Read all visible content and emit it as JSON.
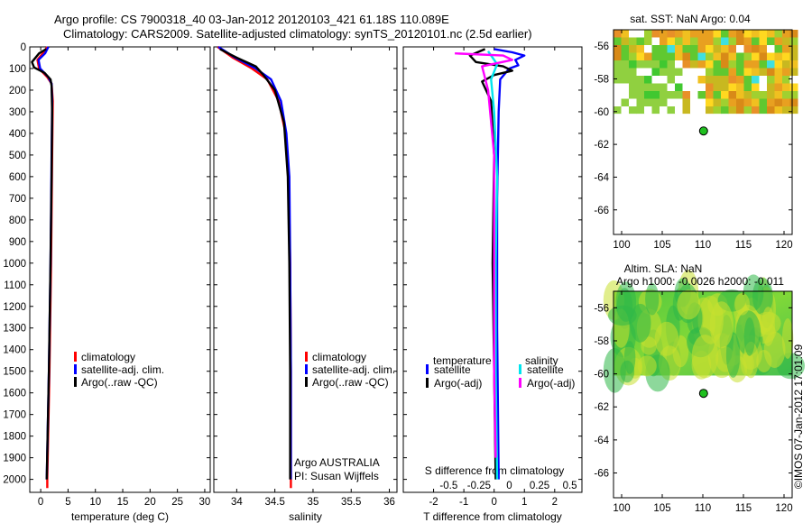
{
  "header": {
    "line1": "Argo profile: CS 7900318_40 03-Jan-2012 20120103_421 61.18S 110.089E",
    "line2": "Climatology: CARS2009. Satellite-adjusted climatology: synTS_20120101.nc (2.5d earlier)"
  },
  "depth_ticks": [
    "0",
    "100",
    "200",
    "300",
    "400",
    "500",
    "600",
    "700",
    "800",
    "900",
    "1000",
    "1100",
    "1200",
    "1300",
    "1400",
    "1500",
    "1600",
    "1700",
    "1800",
    "1900",
    "2000"
  ],
  "colors": {
    "climatology": "#ff0000",
    "satellite": "#0000ff",
    "argo": "#000000",
    "sal_satellite": "#00e5ee",
    "sal_argo": "#ff00ff"
  },
  "chart_data": [
    {
      "type": "line",
      "id": "temperature",
      "xlabel": "temperature (deg C)",
      "xlim": [
        -2,
        31
      ],
      "ylim": [
        2060,
        0
      ],
      "xticks": [
        "0",
        "5",
        "10",
        "15",
        "20",
        "25",
        "30"
      ],
      "legend": [
        "climatology",
        "satellite-adj. clim.",
        "Argo(..raw -QC)"
      ],
      "series": [
        {
          "name": "climatology",
          "color": "#ff0000",
          "points": [
            [
              1.2,
              0
            ],
            [
              0.4,
              30
            ],
            [
              -0.6,
              60
            ],
            [
              -0.3,
              100
            ],
            [
              1.2,
              140
            ],
            [
              2.0,
              170
            ],
            [
              2.2,
              250
            ],
            [
              2.1,
              500
            ],
            [
              1.9,
              1000
            ],
            [
              1.6,
              1500
            ],
            [
              1.2,
              2000
            ],
            [
              1.2,
              2040
            ]
          ]
        },
        {
          "name": "satellite-adj. clim.",
          "color": "#0000ff",
          "points": [
            [
              1.4,
              0
            ],
            [
              0.8,
              30
            ],
            [
              -0.4,
              60
            ],
            [
              -0.1,
              100
            ],
            [
              1.4,
              140
            ],
            [
              2.0,
              170
            ],
            [
              2.1,
              250
            ],
            [
              2.0,
              500
            ],
            [
              1.8,
              1000
            ],
            [
              1.5,
              1500
            ],
            [
              1.1,
              2000
            ]
          ]
        },
        {
          "name": "Argo(..raw -QC)",
          "color": "#000000",
          "points": [
            [
              1.0,
              10
            ],
            [
              -0.3,
              30
            ],
            [
              -1.6,
              70
            ],
            [
              -1.2,
              95
            ],
            [
              0.7,
              120
            ],
            [
              1.8,
              150
            ],
            [
              2.0,
              180
            ],
            [
              2.1,
              300
            ],
            [
              2.0,
              600
            ],
            [
              1.8,
              1000
            ],
            [
              1.5,
              1500
            ],
            [
              1.1,
              2000
            ]
          ]
        }
      ]
    },
    {
      "type": "line",
      "id": "salinity",
      "xlabel": "salinity",
      "xlim": [
        33.7,
        36.1
      ],
      "ylim": [
        2060,
        0
      ],
      "xticks": [
        "34",
        "34.5",
        "35",
        "35.5",
        "36"
      ],
      "legend": [
        "climatology",
        "satellite-adj. clim.",
        "Argo(..raw -QC)"
      ],
      "annotation": [
        "Argo AUSTRALIA",
        "PI: Susan Wijffels"
      ],
      "series": [
        {
          "name": "climatology",
          "color": "#ff0000",
          "points": [
            [
              33.75,
              0
            ],
            [
              33.95,
              50
            ],
            [
              34.2,
              100
            ],
            [
              34.4,
              150
            ],
            [
              34.55,
              250
            ],
            [
              34.64,
              400
            ],
            [
              34.68,
              600
            ],
            [
              34.7,
              1000
            ],
            [
              34.71,
              1500
            ],
            [
              34.71,
              2040
            ]
          ]
        },
        {
          "name": "satellite-adj. clim.",
          "color": "#0000ff",
          "points": [
            [
              33.76,
              0
            ],
            [
              33.98,
              50
            ],
            [
              34.25,
              100
            ],
            [
              34.45,
              150
            ],
            [
              34.58,
              250
            ],
            [
              34.65,
              400
            ],
            [
              34.69,
              600
            ],
            [
              34.7,
              1000
            ],
            [
              34.71,
              1500
            ],
            [
              34.71,
              2000
            ]
          ]
        },
        {
          "name": "Argo(..raw -QC)",
          "color": "#000000",
          "points": [
            [
              33.78,
              10
            ],
            [
              34.0,
              50
            ],
            [
              34.25,
              90
            ],
            [
              34.35,
              130
            ],
            [
              34.5,
              200
            ],
            [
              34.62,
              350
            ],
            [
              34.67,
              600
            ],
            [
              34.69,
              1000
            ],
            [
              34.7,
              1500
            ],
            [
              34.7,
              2000
            ]
          ]
        }
      ]
    },
    {
      "type": "line",
      "id": "difference",
      "xlabel": "T difference from climatology",
      "xlim": [
        -3,
        2.9
      ],
      "ylim": [
        2060,
        0
      ],
      "xticks": [
        "-2",
        "-1",
        "0",
        "1",
        "2"
      ],
      "xlabel_top": "S difference from climatology",
      "xticks_top": [
        "-0.5",
        "-0.25",
        "0",
        "0.25",
        "0.5"
      ],
      "legend_groups": [
        "temperature",
        "salinity"
      ],
      "legend": [
        "satellite",
        "Argo(-adj)",
        "satellite",
        "Argo(-adj)"
      ],
      "series": [
        {
          "name": "satellite",
          "color": "#0000ff",
          "points": [
            [
              0.0,
              10
            ],
            [
              0.6,
              25
            ],
            [
              1.0,
              40
            ],
            [
              0.7,
              60
            ],
            [
              0.8,
              85
            ],
            [
              0.5,
              100
            ],
            [
              0.2,
              150
            ],
            [
              0.15,
              300
            ],
            [
              0.1,
              700
            ],
            [
              0.1,
              1300
            ],
            [
              0.15,
              2000
            ]
          ]
        },
        {
          "name": "Argo(-adj)",
          "color": "#000000",
          "points": [
            [
              -0.3,
              10
            ],
            [
              -0.8,
              40
            ],
            [
              -0.6,
              70
            ],
            [
              0.3,
              90
            ],
            [
              0.6,
              110
            ],
            [
              0.0,
              130
            ],
            [
              -0.4,
              160
            ],
            [
              -0.1,
              250
            ],
            [
              0.0,
              500
            ],
            [
              -0.05,
              1000
            ],
            [
              0.0,
              1500
            ],
            [
              0.05,
              2000
            ]
          ]
        },
        {
          "name": "satellite",
          "color": "#00e5ee",
          "points": [
            [
              -0.2,
              20
            ],
            [
              0.1,
              80
            ],
            [
              -0.1,
              150
            ],
            [
              0.0,
              300
            ],
            [
              0.1,
              600
            ],
            [
              0.05,
              1000
            ],
            [
              0.05,
              1500
            ],
            [
              0.1,
              2000
            ]
          ]
        },
        {
          "name": "Argo(-adj)",
          "color": "#ff00ff",
          "points": [
            [
              -1.3,
              30
            ],
            [
              0.3,
              40
            ],
            [
              0.6,
              60
            ],
            [
              -0.4,
              90
            ],
            [
              -0.2,
              200
            ],
            [
              0.0,
              500
            ],
            [
              0.0,
              1000
            ],
            [
              0.0,
              1500
            ],
            [
              0.05,
              1900
            ]
          ]
        }
      ]
    },
    {
      "type": "heatmap",
      "id": "sst_map",
      "title": "sat. SST: NaN Argo: 0.04",
      "xlim": [
        99,
        121
      ],
      "ylim": [
        -67.5,
        -55
      ],
      "xticks": [
        "100",
        "105",
        "110",
        "115",
        "120"
      ],
      "yticks": [
        "-56",
        "-58",
        "-60",
        "-62",
        "-64",
        "-66"
      ],
      "argo_position": [
        110.089,
        -61.18
      ]
    },
    {
      "type": "heatmap",
      "id": "sla_map",
      "title": "Altim. SLA: NaN",
      "subtitle": "Argo h1000: -0.0026 h2000: -0.011",
      "xlim": [
        99,
        121
      ],
      "ylim": [
        -67.5,
        -55
      ],
      "xticks": [
        "100",
        "105",
        "110",
        "115",
        "120"
      ],
      "yticks": [
        "-56",
        "-58",
        "-60",
        "-62",
        "-64",
        "-66"
      ],
      "argo_position": [
        110.089,
        -61.18
      ]
    }
  ],
  "footer": {
    "stamp": "©IMOS 07-Jan-2012 17:01:09"
  }
}
